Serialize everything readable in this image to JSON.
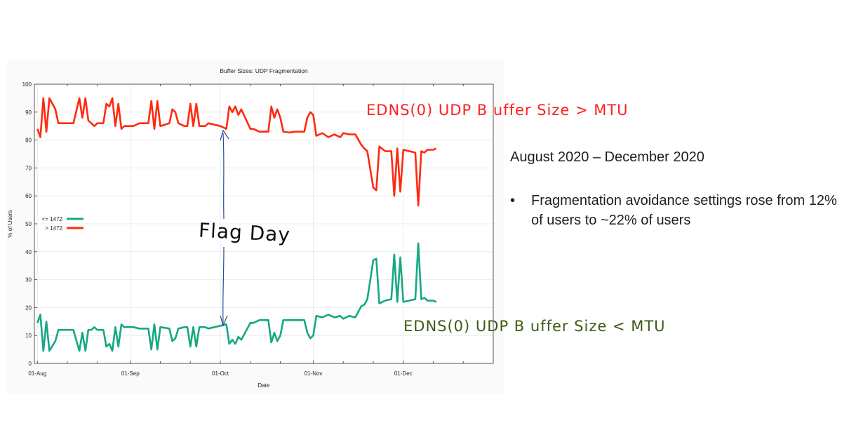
{
  "chart_data": {
    "type": "line",
    "title": "Buffer Sizes: UDP Fragmentation",
    "xlabel": "Date",
    "ylabel": "% of Users",
    "ylim": [
      0,
      100
    ],
    "yticks": [
      0,
      10,
      20,
      30,
      40,
      50,
      60,
      70,
      80,
      90,
      100
    ],
    "xlim": [
      "2020-07-31",
      "2020-12-31"
    ],
    "xticks": [
      {
        "date": "2020-08-01",
        "label": "01-Aug"
      },
      {
        "date": "2020-09-01",
        "label": "01-Sep"
      },
      {
        "date": "2020-10-01",
        "label": "01-Oct"
      },
      {
        "date": "2020-11-01",
        "label": "01-Nov"
      },
      {
        "date": "2020-12-01",
        "label": "01-Dec"
      }
    ],
    "grid": true,
    "legend_placement": "left",
    "x": [
      "2020-08-01",
      "2020-08-02",
      "2020-08-03",
      "2020-08-04",
      "2020-08-05",
      "2020-08-07",
      "2020-08-08",
      "2020-08-09",
      "2020-08-11",
      "2020-08-13",
      "2020-08-15",
      "2020-08-16",
      "2020-08-17",
      "2020-08-18",
      "2020-08-19",
      "2020-08-20",
      "2020-08-21",
      "2020-08-23",
      "2020-08-24",
      "2020-08-25",
      "2020-08-26",
      "2020-08-27",
      "2020-08-28",
      "2020-08-29",
      "2020-08-30",
      "2020-09-02",
      "2020-09-04",
      "2020-09-07",
      "2020-09-08",
      "2020-09-09",
      "2020-09-10",
      "2020-09-11",
      "2020-09-14",
      "2020-09-15",
      "2020-09-16",
      "2020-09-17",
      "2020-09-19",
      "2020-09-20",
      "2020-09-21",
      "2020-09-22",
      "2020-09-23",
      "2020-09-24",
      "2020-09-26",
      "2020-09-27",
      "2020-10-01",
      "2020-10-03",
      "2020-10-04",
      "2020-10-05",
      "2020-10-06",
      "2020-10-07",
      "2020-10-08",
      "2020-10-11",
      "2020-10-12",
      "2020-10-14",
      "2020-10-17",
      "2020-10-18",
      "2020-10-19",
      "2020-10-20",
      "2020-10-21",
      "2020-10-22",
      "2020-10-24",
      "2020-10-26",
      "2020-10-28",
      "2020-10-29",
      "2020-10-30",
      "2020-10-31",
      "2020-11-01",
      "2020-11-02",
      "2020-11-04",
      "2020-11-06",
      "2020-11-08",
      "2020-11-10",
      "2020-11-11",
      "2020-11-13",
      "2020-11-15",
      "2020-11-17",
      "2020-11-18",
      "2020-11-19",
      "2020-11-21",
      "2020-11-22",
      "2020-11-23",
      "2020-11-25",
      "2020-11-27",
      "2020-11-28",
      "2020-11-29",
      "2020-11-30",
      "2020-12-01",
      "2020-12-05",
      "2020-12-06",
      "2020-12-07",
      "2020-12-08",
      "2020-12-09",
      "2020-12-11",
      "2020-12-12"
    ],
    "series": [
      {
        "name": "<= 1472",
        "color": "#16a883",
        "values": [
          14.5,
          17.5,
          4.5,
          15,
          4.5,
          8,
          12,
          12,
          12,
          12,
          4.5,
          11,
          4.5,
          12,
          12,
          13,
          12,
          12,
          6,
          7,
          4.5,
          13,
          6,
          14,
          13,
          13,
          12.5,
          12.5,
          5,
          14,
          5,
          13,
          12.5,
          8,
          9,
          12.5,
          13,
          13,
          6,
          13,
          6,
          13,
          13,
          12.5,
          13.5,
          14,
          7,
          8.5,
          7,
          9.5,
          8.5,
          14.5,
          14.5,
          15.5,
          15.5,
          7.5,
          11,
          8,
          10,
          15.5,
          15.5,
          15.5,
          15.5,
          15.5,
          11,
          9,
          10,
          17,
          16.5,
          17.5,
          16.5,
          17,
          16,
          17,
          16.5,
          20.5,
          21,
          23,
          37,
          37.5,
          21.5,
          22.5,
          23,
          39,
          22,
          38,
          22,
          23,
          43,
          23,
          23.5,
          22.5,
          22.5,
          22
        ]
      },
      {
        "name": "> 1472",
        "color": "#ff2a10",
        "values": [
          84,
          81,
          95,
          83,
          95,
          91,
          86,
          86,
          86,
          86,
          95,
          88,
          95,
          87,
          86,
          85,
          86,
          86,
          93,
          92,
          95,
          85,
          93,
          84,
          85,
          85,
          86,
          86,
          94,
          84,
          94,
          85,
          86,
          91,
          90,
          86,
          85,
          85,
          93,
          85,
          93,
          85,
          85,
          86,
          85,
          84,
          92,
          90,
          92,
          89,
          91,
          84,
          84,
          83,
          83,
          92,
          88,
          91,
          88,
          83,
          82.7,
          83,
          83,
          83,
          88,
          90,
          89,
          81.5,
          82.5,
          81,
          82,
          81,
          82.5,
          82,
          82,
          78.3,
          77,
          76,
          63,
          62,
          77.7,
          76,
          76,
          60,
          77,
          61.5,
          76.5,
          75.5,
          56.5,
          76,
          75.5,
          76.5,
          76.5,
          77
        ]
      }
    ],
    "annotations": {
      "above": "EDNS(0) UDP B uffer Size > MTU",
      "below": "EDNS(0) UDP B uffer Size < MTU",
      "flag_day": "Flag Day",
      "flag_day_date": "2020-10-01",
      "above_color": "#ff1f1f",
      "below_color": "#3d5a12"
    }
  },
  "slide": {
    "date_range": "August 2020 – December 2020",
    "bullets": [
      {
        "symbol": "•",
        "text": "Fragmentation avoidance settings rose from 12% of users to ~22% of users"
      }
    ]
  }
}
